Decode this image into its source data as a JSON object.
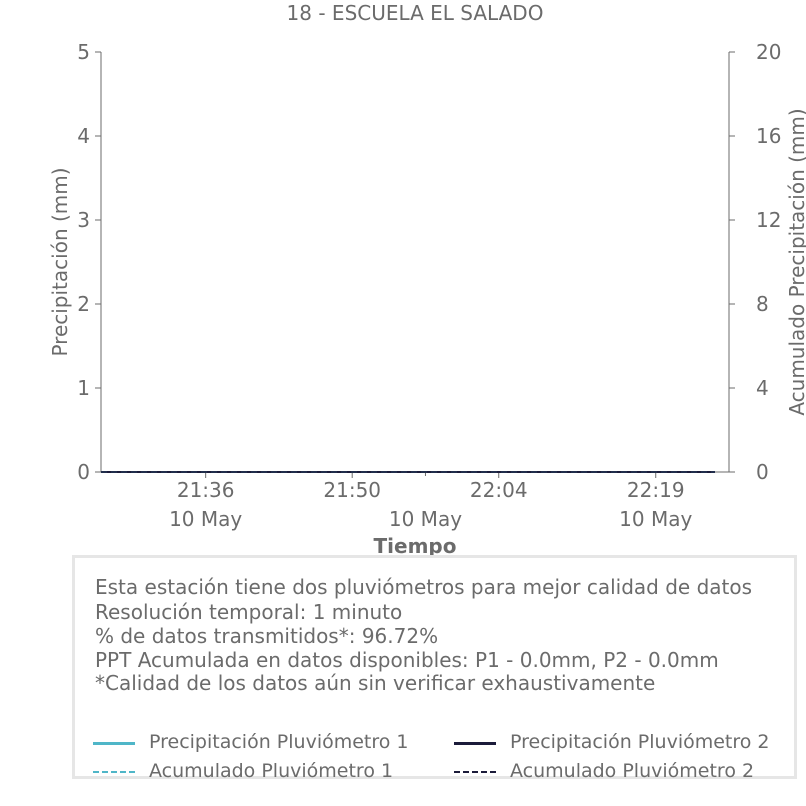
{
  "chart_data": {
    "type": "line",
    "title": "18 - ESCUELA EL SALADO",
    "xlabel": "Tiempo",
    "ylabel": "Precipitación (mm)",
    "y2label": "Acumulado Precipitación (mm)",
    "ylim": [
      0,
      5
    ],
    "y2lim": [
      0,
      20
    ],
    "yticks": [
      "0",
      "1",
      "2",
      "3",
      "4",
      "5"
    ],
    "y2ticks": [
      "0",
      "4",
      "8",
      "12",
      "16",
      "20"
    ],
    "xticks": [
      {
        "time": "21:36",
        "date": "10 May"
      },
      {
        "time": "21:50",
        "date": "10 May"
      },
      {
        "time": "22:04",
        "date": "10 May"
      },
      {
        "time": "22:19",
        "date": "10 May"
      }
    ],
    "x_range": [
      "21:26",
      "22:26"
    ],
    "grid": false,
    "series": [
      {
        "name": "Precipitación Pluviómetro 1",
        "color": "#4fb6c8",
        "style": "solid",
        "axis": "left",
        "values": [
          0,
          0
        ]
      },
      {
        "name": "Precipitación Pluviómetro 2",
        "color": "#1b1b3a",
        "style": "solid",
        "axis": "left",
        "values": [
          0,
          0
        ]
      },
      {
        "name": "Acumulado Pluviómetro 1",
        "color": "#4fb6c8",
        "style": "dashed",
        "axis": "right",
        "values": [
          0,
          0
        ]
      },
      {
        "name": "Acumulado Pluviómetro 2",
        "color": "#1b1b3a",
        "style": "dashed",
        "axis": "right",
        "values": [
          0,
          0
        ]
      }
    ]
  },
  "info": {
    "line1": "Esta estación tiene dos pluviómetros para mejor calidad de datos",
    "line2": "Resolución temporal: 1 minuto",
    "line3": "% de datos transmitidos*: 96.72%",
    "line4": "PPT Acumulada en datos disponibles: P1 - 0.0mm, P2 - 0.0mm",
    "line5": "*Calidad de los datos aún sin verificar exhaustivamente"
  }
}
